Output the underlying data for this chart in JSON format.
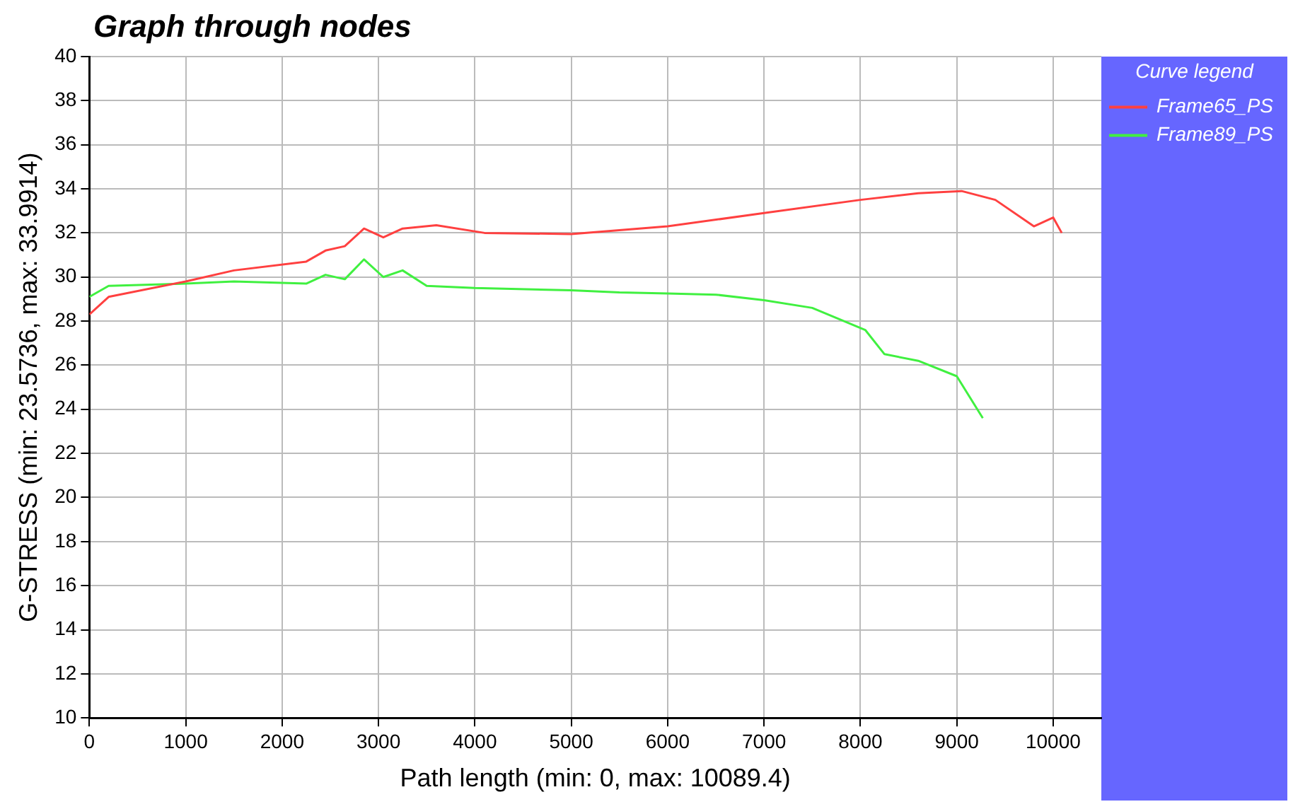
{
  "chart_data": {
    "type": "line",
    "title": "Graph through nodes",
    "xlabel": "Path length (min: 0, max: 10089.4)",
    "ylabel": "G-STRESS (min: 23.5736, max: 33.9914)",
    "legend_title": "Curve legend",
    "legend": "top right",
    "grid": true,
    "line_style": "solid",
    "marker": "none",
    "xlim": [
      0,
      10500
    ],
    "xticks": [
      0,
      1000,
      2000,
      3000,
      4000,
      5000,
      6000,
      7000,
      8000,
      9000,
      10000
    ],
    "ylim": [
      10,
      40
    ],
    "yticks": [
      10,
      12,
      14,
      16,
      18,
      20,
      22,
      24,
      26,
      28,
      30,
      32,
      34,
      36,
      38,
      40
    ],
    "series": [
      {
        "name": "Frame65_PS",
        "color": "#ff4040",
        "x": [
          0,
          200,
          1000,
          1500,
          2250,
          2450,
          2650,
          2850,
          3050,
          3250,
          3600,
          4100,
          5000,
          6000,
          7000,
          8000,
          8600,
          9050,
          9400,
          9800,
          10000,
          10089
        ],
        "values": [
          28.3,
          29.1,
          29.8,
          30.3,
          30.7,
          31.2,
          31.4,
          32.2,
          31.8,
          32.2,
          32.35,
          32.0,
          31.95,
          32.3,
          32.9,
          33.5,
          33.8,
          33.9,
          33.5,
          32.3,
          32.7,
          32.0
        ]
      },
      {
        "name": "Frame89_PS",
        "color": "#40f040",
        "x": [
          0,
          200,
          1000,
          1500,
          2250,
          2450,
          2650,
          2850,
          3050,
          3250,
          3500,
          4000,
          5000,
          5500,
          6000,
          6500,
          7000,
          7500,
          8050,
          8250,
          8600,
          9000,
          9270
        ],
        "values": [
          29.1,
          29.6,
          29.7,
          29.8,
          29.7,
          30.1,
          29.9,
          30.8,
          30.0,
          30.3,
          29.6,
          29.5,
          29.4,
          29.3,
          29.25,
          29.2,
          28.95,
          28.6,
          27.6,
          26.5,
          26.2,
          25.5,
          23.6
        ]
      }
    ]
  }
}
